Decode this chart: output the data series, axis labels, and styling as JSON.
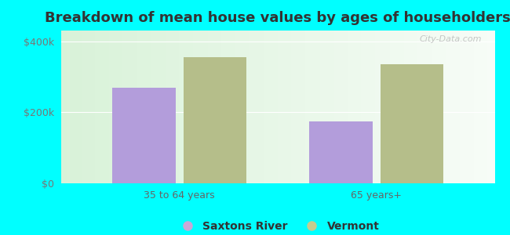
{
  "title": "Breakdown of mean house values by ages of householders",
  "categories": [
    "35 to 64 years",
    "65 years+"
  ],
  "series": [
    {
      "name": "Saxtons River",
      "values": [
        270000,
        175000
      ],
      "color": "#b39ddb"
    },
    {
      "name": "Vermont",
      "values": [
        355000,
        335000
      ],
      "color": "#b5be8a"
    }
  ],
  "ylim": [
    0,
    430000
  ],
  "yticks": [
    0,
    200000,
    400000
  ],
  "ytick_labels": [
    "$0",
    "$200k",
    "$400k"
  ],
  "background_color": "#00ffff",
  "title_fontsize": 13,
  "bar_width": 0.32,
  "legend_marker_color_saxtons": "#c9a8d8",
  "legend_marker_color_vermont": "#c5cc8e",
  "watermark": "City-Data.com"
}
